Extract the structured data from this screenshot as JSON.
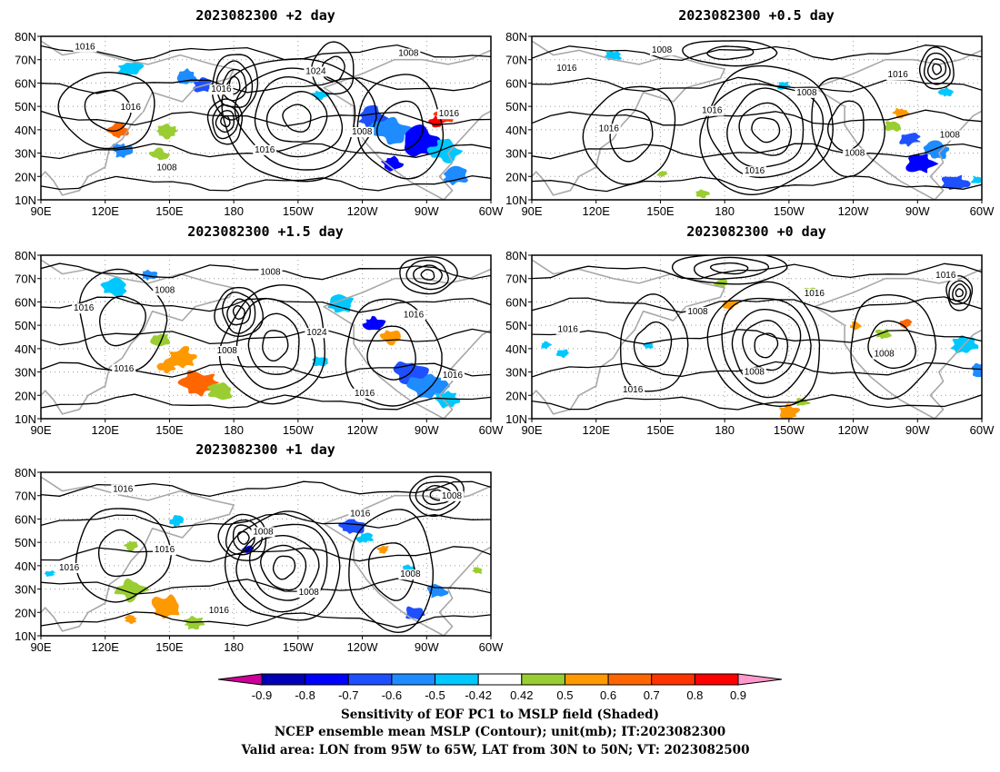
{
  "panels": [
    {
      "id": "p2",
      "title": "2023082300 +2 day",
      "contour_labels": [
        "1016",
        "1016",
        "1008",
        "1016",
        "1016",
        "1024",
        "1008",
        "1008",
        "1016"
      ]
    },
    {
      "id": "p05",
      "title": "2023082300 +0.5 day",
      "contour_labels": [
        "1016",
        "1016",
        "1008",
        "1016",
        "1016",
        "1008",
        "1008",
        "1016",
        "1008"
      ]
    },
    {
      "id": "p15",
      "title": "2023082300 +1.5 day",
      "contour_labels": [
        "1016",
        "1016",
        "1008",
        "1008",
        "1008",
        "1024",
        "1016",
        "1016",
        "1016"
      ]
    },
    {
      "id": "p0",
      "title": "2023082300 +0 day",
      "contour_labels": [
        "1016",
        "1016",
        "1008",
        "1008",
        "1016",
        "1008",
        "1016"
      ]
    },
    {
      "id": "p1",
      "title": "2023082300 +1 day",
      "contour_labels": [
        "1016",
        "1016",
        "1016",
        "1016",
        "1008",
        "1008",
        "1016",
        "1008",
        "1008"
      ]
    }
  ],
  "axes": {
    "lat_ticks": [
      "80N",
      "70N",
      "60N",
      "50N",
      "40N",
      "30N",
      "20N",
      "10N"
    ],
    "lon_ticks": [
      "90E",
      "120E",
      "150E",
      "180",
      "150W",
      "120W",
      "90W",
      "60W"
    ]
  },
  "colorbar": {
    "labels": [
      "-0.9",
      "-0.8",
      "-0.7",
      "-0.6",
      "-0.5",
      "-0.42",
      "0.42",
      "0.5",
      "0.6",
      "0.7",
      "0.8",
      "0.9"
    ],
    "colors": [
      "#cc0099",
      "#0000b4",
      "#0000ff",
      "#1e50ff",
      "#1e8cff",
      "#00c8ff",
      "#ffffff",
      "#9acd32",
      "#ff9900",
      "#ff6600",
      "#ff3300",
      "#ff0000",
      "#ff99cc"
    ]
  },
  "caption": [
    "Sensitivity of EOF PC1 to MSLP field (Shaded)",
    "NCEP ensemble mean MSLP (Contour); unit(mb); IT:2023082300",
    "Valid area: LON from 95W to 65W, LAT from 30N to 50N; VT: 2023082500"
  ]
}
